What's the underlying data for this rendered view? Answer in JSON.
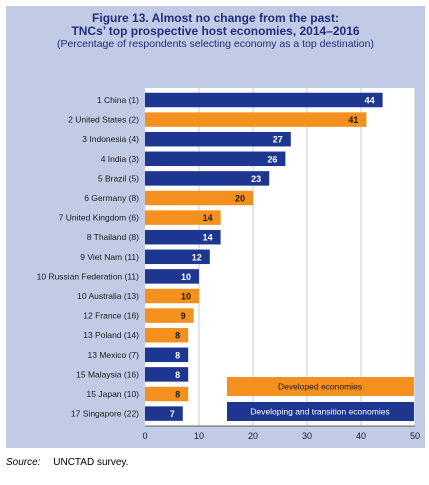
{
  "title": {
    "line1": "Figure 13.  Almost no change from the past:",
    "line2": "TNCs’ top prospective host economies, 2014–2016",
    "line3": "(Percentage of respondents selecting economy as a top destination)"
  },
  "source": {
    "label": "Source:",
    "text": "UNCTAD survey."
  },
  "colors": {
    "developed": "#f4901e",
    "developing": "#1d3690",
    "panel": "#c2cbe6",
    "plot": "#ffffff"
  },
  "chart_data": {
    "type": "bar",
    "orientation": "horizontal",
    "categories": [
      "1 China (1)",
      "2 United States (2)",
      "3 Indonesia (4)",
      "4 India (3)",
      "5 Brazil (5)",
      "6 Germany (8)",
      "7 United Kingdom (6)",
      "8 Thailand (8)",
      "9 Viet Nam (11)",
      "10 Russian Federation (11)",
      "10 Australia (13)",
      "12 France (16)",
      "13 Poland (14)",
      "13 Mexico (7)",
      "15 Malaysia (16)",
      "15 Japan (10)",
      "17 Singapore (22)"
    ],
    "values": [
      44,
      41,
      27,
      26,
      23,
      20,
      14,
      14,
      12,
      10,
      10,
      9,
      8,
      8,
      8,
      8,
      7
    ],
    "groups": [
      "developing",
      "developed",
      "developing",
      "developing",
      "developing",
      "developed",
      "developed",
      "developing",
      "developing",
      "developing",
      "developed",
      "developed",
      "developed",
      "developing",
      "developing",
      "developed",
      "developing"
    ],
    "xlim": [
      0,
      50
    ],
    "xticks": [
      0,
      10,
      20,
      30,
      40,
      50
    ],
    "legend": [
      {
        "label": "Developed economies",
        "group": "developed"
      },
      {
        "label": "Developing and transition economies",
        "group": "developing"
      }
    ],
    "legend_position": "bottom-right",
    "grid": true
  }
}
